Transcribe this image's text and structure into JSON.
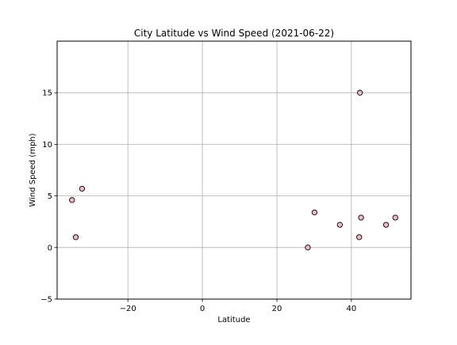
{
  "chart_data": {
    "type": "scatter",
    "title": "City Latitude vs Wind Speed (2021-06-22)",
    "xlabel": "Latitude",
    "ylabel": "Wind Speed (mph)",
    "xlim": [
      -39,
      56
    ],
    "ylim": [
      -5,
      20
    ],
    "xticks": [
      -20,
      0,
      20,
      40
    ],
    "yticks": [
      -5,
      0,
      5,
      10,
      15
    ],
    "grid": true,
    "legend": "none",
    "marker_fill": "#f4b6c2",
    "marker_edge": "#000000",
    "points": [
      {
        "x": -35.0,
        "y": 4.6
      },
      {
        "x": -34.0,
        "y": 1.0
      },
      {
        "x": -32.3,
        "y": 5.7
      },
      {
        "x": 28.3,
        "y": 0.0
      },
      {
        "x": 30.1,
        "y": 3.4
      },
      {
        "x": 36.9,
        "y": 2.2
      },
      {
        "x": 42.1,
        "y": 1.0
      },
      {
        "x": 42.3,
        "y": 15.0
      },
      {
        "x": 42.6,
        "y": 2.9
      },
      {
        "x": 49.3,
        "y": 2.2
      },
      {
        "x": 51.8,
        "y": 2.9
      }
    ]
  }
}
